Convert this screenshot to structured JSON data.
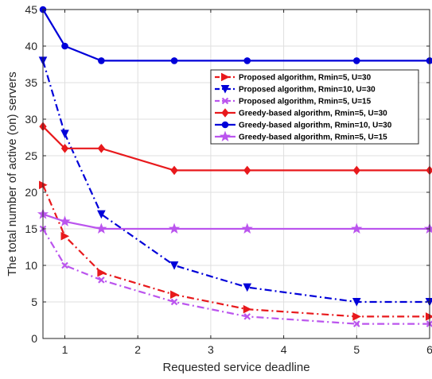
{
  "chart_data": {
    "type": "line",
    "xlabel": "Requested service deadline",
    "ylabel": "The total number of active (on) servers",
    "xlim": [
      0.7,
      6
    ],
    "ylim": [
      0,
      45
    ],
    "xticks": [
      1,
      2,
      3,
      4,
      5,
      6
    ],
    "yticks": [
      0,
      5,
      10,
      15,
      20,
      25,
      30,
      35,
      40,
      45
    ],
    "grid": true,
    "legend_position": "upper-right",
    "series": [
      {
        "name": "Proposed algorithm, Rmin=5, U=30",
        "color": "#e8191c",
        "dash": "dashdot",
        "marker": "triangle-right",
        "x": [
          0.7,
          1,
          1.5,
          2.5,
          3.5,
          5,
          6
        ],
        "y": [
          21,
          14,
          9,
          6,
          4,
          3,
          3
        ]
      },
      {
        "name": "Proposed algorithm, Rmin=10, U=30",
        "color": "#0000d9",
        "dash": "dashdot",
        "marker": "triangle-down",
        "x": [
          0.7,
          1,
          1.5,
          2.5,
          3.5,
          5,
          6
        ],
        "y": [
          38,
          28,
          17,
          10,
          7,
          5,
          5
        ]
      },
      {
        "name": "Proposed algorithm, Rmin=5, U=15",
        "color": "#bb55ee",
        "dash": "dashdot",
        "marker": "x",
        "x": [
          0.7,
          1,
          1.5,
          2.5,
          3.5,
          5,
          6
        ],
        "y": [
          15,
          10,
          8,
          5,
          3,
          2,
          2
        ]
      },
      {
        "name": "Greedy-based algorithm, Rmin=5, U=30",
        "color": "#e8191c",
        "dash": "solid",
        "marker": "diamond",
        "x": [
          0.7,
          1,
          1.5,
          2.5,
          3.5,
          5,
          6
        ],
        "y": [
          29,
          26,
          26,
          23,
          23,
          23,
          23
        ]
      },
      {
        "name": "Greedy-based algorithm, Rmin=10, U=30",
        "color": "#0000d9",
        "dash": "solid",
        "marker": "circle",
        "x": [
          0.7,
          1,
          1.5,
          2.5,
          3.5,
          5,
          6
        ],
        "y": [
          45,
          40,
          38,
          38,
          38,
          38,
          38
        ]
      },
      {
        "name": "Greedy-based algorithm, Rmin=5, U=15",
        "color": "#bb55ee",
        "dash": "solid",
        "marker": "star",
        "x": [
          0.7,
          1,
          1.5,
          2.5,
          3.5,
          5,
          6
        ],
        "y": [
          17,
          16,
          15,
          15,
          15,
          15,
          15
        ]
      }
    ]
  }
}
